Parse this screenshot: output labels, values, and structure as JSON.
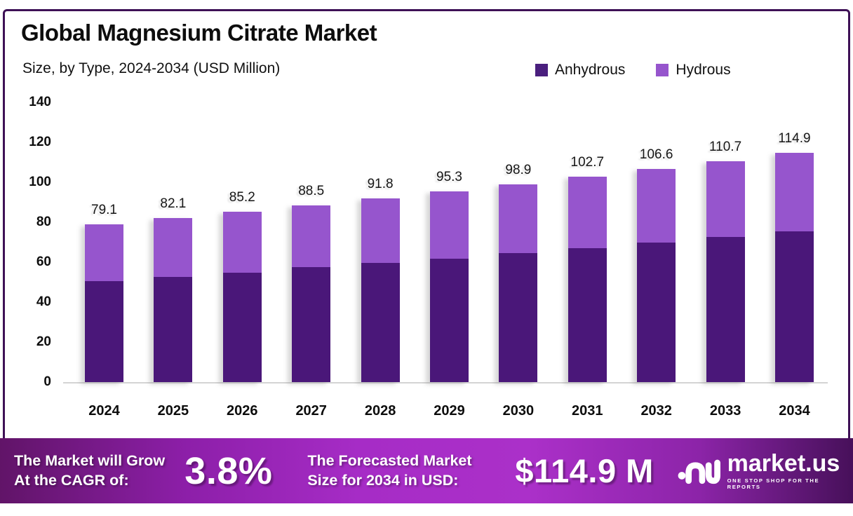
{
  "header": {
    "title": "Global Magnesium Citrate Market",
    "subtitle": "Size, by Type, 2024-2034 (USD Million)"
  },
  "colors": {
    "anhydrous": "#4a1779",
    "hydrous": "#9655cd",
    "frame_border": "#3e1156",
    "banner_gradient_left": "#611468",
    "banner_gradient_mid": "#a62cc6",
    "banner_gradient_right": "#47105a"
  },
  "chart_data": {
    "type": "bar",
    "stacked": true,
    "title": "Global Magnesium Citrate Market",
    "subtitle": "Size, by Type, 2024-2034 (USD Million)",
    "categories": [
      "2024",
      "2025",
      "2026",
      "2027",
      "2028",
      "2029",
      "2030",
      "2031",
      "2032",
      "2033",
      "2034"
    ],
    "series": [
      {
        "name": "Anhydrous",
        "color": "#4a1779",
        "values": [
          50.7,
          52.5,
          54.8,
          57.4,
          59.5,
          61.8,
          64.7,
          67.0,
          70.0,
          72.5,
          75.5
        ]
      },
      {
        "name": "Hydrous",
        "color": "#9655cd",
        "values": [
          28.4,
          29.6,
          30.4,
          31.1,
          32.3,
          33.5,
          34.2,
          35.7,
          36.6,
          38.2,
          39.4
        ]
      }
    ],
    "totals": [
      "79.1",
      "82.1",
      "85.2",
      "88.5",
      "91.8",
      "95.3",
      "98.9",
      "102.7",
      "106.6",
      "110.7",
      "114.9"
    ],
    "xlabel": "",
    "ylabel": "",
    "y_ticks": [
      0,
      20,
      40,
      60,
      80,
      100,
      120,
      140
    ],
    "ylim": [
      0,
      140
    ],
    "grid": false,
    "legend_position": "top-right"
  },
  "legend": {
    "anhydrous_label": "Anhydrous",
    "hydrous_label": "Hydrous"
  },
  "banner": {
    "cagr_line1": "The Market will Grow",
    "cagr_line2": "At the CAGR of:",
    "cagr_value": "3.8%",
    "forecast_line1": "The Forecasted Market",
    "forecast_line2": "Size for 2034 in USD:",
    "forecast_value": "$114.9 M",
    "logo_name": "market.us",
    "logo_tagline": "ONE STOP SHOP FOR THE REPORTS"
  }
}
